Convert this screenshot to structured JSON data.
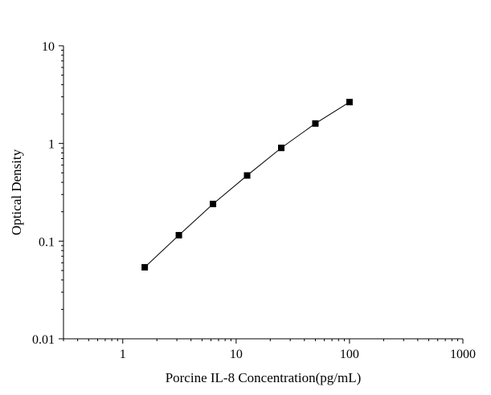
{
  "chart_data": {
    "type": "scatter",
    "xlabel": "Porcine IL-8 Concentration(pg/mL)",
    "ylabel": "Optical Density",
    "x_scale": "log",
    "y_scale": "log",
    "xlim": [
      0.3,
      1000
    ],
    "ylim": [
      0.01,
      10
    ],
    "x_ticks": [
      {
        "value": 1,
        "label": "1"
      },
      {
        "value": 10,
        "label": "10"
      },
      {
        "value": 100,
        "label": "100"
      },
      {
        "value": 1000,
        "label": "1000"
      }
    ],
    "y_ticks": [
      {
        "value": 0.01,
        "label": "0.01"
      },
      {
        "value": 0.1,
        "label": "0.1"
      },
      {
        "value": 1,
        "label": "1"
      },
      {
        "value": 10,
        "label": "10"
      }
    ],
    "grid": false,
    "series": [
      {
        "marker": "square",
        "fit_line": true,
        "points": [
          {
            "x": 1.5625,
            "y": 0.054
          },
          {
            "x": 3.125,
            "y": 0.115
          },
          {
            "x": 6.25,
            "y": 0.24
          },
          {
            "x": 12.5,
            "y": 0.47
          },
          {
            "x": 25,
            "y": 0.9
          },
          {
            "x": 50,
            "y": 1.6
          },
          {
            "x": 100,
            "y": 2.65
          }
        ]
      }
    ],
    "colors": {
      "marker": "#000000",
      "line": "#000000",
      "axis": "#000000"
    }
  }
}
